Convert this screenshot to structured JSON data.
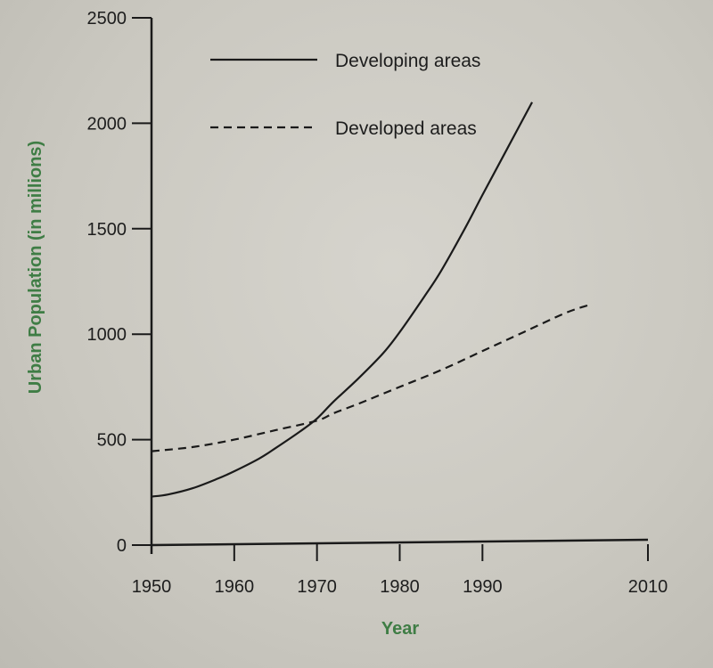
{
  "chart_data": {
    "type": "line",
    "xlabel": "Year",
    "ylabel": "Urban Population (in millions)",
    "xlim": [
      1950,
      2010
    ],
    "ylim": [
      0,
      2500
    ],
    "x_ticks": [
      1950,
      1960,
      1970,
      1980,
      1990,
      2010
    ],
    "y_ticks": [
      0,
      500,
      1000,
      1500,
      2000,
      2500
    ],
    "grid": false,
    "legend_position": "top",
    "series": [
      {
        "name": "Developing areas",
        "style": "solid",
        "color": "#1a1a1a",
        "x": [
          1950,
          1952,
          1955,
          1958,
          1960,
          1963,
          1965,
          1968,
          1970,
          1972,
          1975,
          1978,
          1980,
          1983,
          1985,
          1988,
          1990,
          1993,
          1996
        ],
        "y": [
          230,
          240,
          270,
          315,
          350,
          410,
          460,
          540,
          600,
          680,
          790,
          910,
          1010,
          1180,
          1300,
          1510,
          1660,
          1880,
          2100
        ]
      },
      {
        "name": "Developed areas",
        "style": "dashed",
        "color": "#1a1a1a",
        "x": [
          1950,
          1955,
          1960,
          1965,
          1970,
          1972,
          1975,
          1980,
          1985,
          1990,
          1995,
          2000,
          2003
        ],
        "y": [
          445,
          465,
          500,
          545,
          590,
          625,
          670,
          750,
          830,
          920,
          1010,
          1100,
          1140
        ]
      }
    ]
  }
}
